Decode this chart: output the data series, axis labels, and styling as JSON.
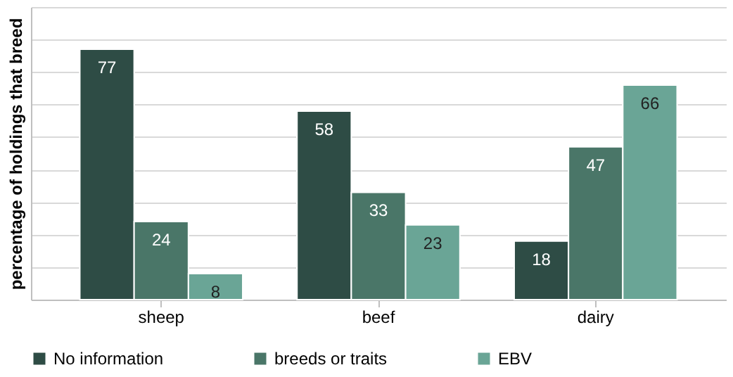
{
  "chart_data": {
    "type": "bar",
    "ylabel": "percentage of holdings that breed",
    "categories": [
      "sheep",
      "beef",
      "dairy"
    ],
    "series": [
      {
        "name": "No information",
        "color": "#2e4c45",
        "values": [
          77,
          58,
          18
        ]
      },
      {
        "name": "breeds or traits",
        "color": "#4a7668",
        "values": [
          24,
          33,
          47
        ]
      },
      {
        "name": "EBV",
        "color": "#6aa596",
        "values": [
          8,
          23,
          66
        ]
      }
    ],
    "ylim": [
      0,
      90
    ],
    "data_labels": true,
    "grid": "y",
    "legend": "bottom",
    "tick_labels": "x"
  }
}
